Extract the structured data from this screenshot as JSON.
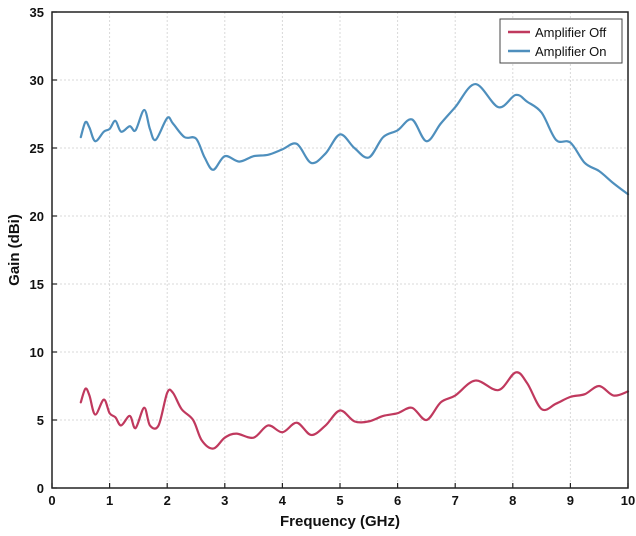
{
  "chart_data": {
    "type": "line",
    "title": "",
    "xlabel": "Frequency (GHz)",
    "ylabel": "Gain (dBi)",
    "xlim": [
      0,
      10
    ],
    "ylim": [
      0,
      35
    ],
    "xticks": [
      0,
      1,
      2,
      3,
      4,
      5,
      6,
      7,
      8,
      9,
      10
    ],
    "yticks": [
      0,
      5,
      10,
      15,
      20,
      25,
      30,
      35
    ],
    "grid": true,
    "legend_position": "top-right",
    "series": [
      {
        "name": "Amplifier Off",
        "color": "#c0395e",
        "x": [
          0.5,
          0.58,
          0.65,
          0.75,
          0.9,
          1.0,
          1.1,
          1.2,
          1.35,
          1.45,
          1.6,
          1.7,
          1.85,
          2.0,
          2.1,
          2.25,
          2.45,
          2.6,
          2.8,
          3.0,
          3.2,
          3.5,
          3.75,
          4.0,
          4.25,
          4.5,
          4.75,
          5.0,
          5.25,
          5.5,
          5.75,
          6.0,
          6.25,
          6.5,
          6.75,
          7.0,
          7.35,
          7.75,
          8.05,
          8.25,
          8.5,
          8.75,
          9.0,
          9.25,
          9.5,
          9.75,
          10.0
        ],
        "values": [
          6.3,
          7.3,
          6.8,
          5.4,
          6.5,
          5.5,
          5.2,
          4.6,
          5.3,
          4.4,
          5.9,
          4.6,
          4.6,
          7.0,
          7.0,
          5.8,
          5.0,
          3.5,
          2.9,
          3.7,
          4.0,
          3.7,
          4.6,
          4.1,
          4.8,
          3.9,
          4.6,
          5.7,
          4.9,
          4.9,
          5.3,
          5.5,
          5.9,
          5.0,
          6.3,
          6.8,
          7.9,
          7.2,
          8.5,
          7.7,
          5.8,
          6.2,
          6.7,
          6.9,
          7.5,
          6.8,
          7.1
        ]
      },
      {
        "name": "Amplifier On",
        "color": "#4e8fbd",
        "x": [
          0.5,
          0.58,
          0.65,
          0.75,
          0.9,
          1.0,
          1.1,
          1.2,
          1.35,
          1.45,
          1.6,
          1.7,
          1.8,
          2.0,
          2.1,
          2.3,
          2.5,
          2.65,
          2.8,
          3.0,
          3.25,
          3.5,
          3.75,
          4.0,
          4.25,
          4.5,
          4.75,
          5.0,
          5.25,
          5.5,
          5.75,
          6.0,
          6.25,
          6.5,
          6.75,
          7.0,
          7.35,
          7.75,
          8.05,
          8.25,
          8.5,
          8.75,
          9.0,
          9.25,
          9.5,
          9.75,
          10.0
        ],
        "values": [
          25.8,
          26.9,
          26.5,
          25.5,
          26.2,
          26.4,
          27.0,
          26.2,
          26.6,
          26.3,
          27.8,
          26.4,
          25.6,
          27.2,
          26.8,
          25.8,
          25.7,
          24.3,
          23.4,
          24.4,
          24.0,
          24.4,
          24.5,
          24.9,
          25.3,
          23.9,
          24.6,
          26.0,
          25.0,
          24.3,
          25.8,
          26.3,
          27.1,
          25.5,
          26.8,
          28.0,
          29.7,
          28.0,
          28.9,
          28.4,
          27.6,
          25.6,
          25.4,
          23.9,
          23.3,
          22.4,
          21.6
        ]
      }
    ]
  }
}
